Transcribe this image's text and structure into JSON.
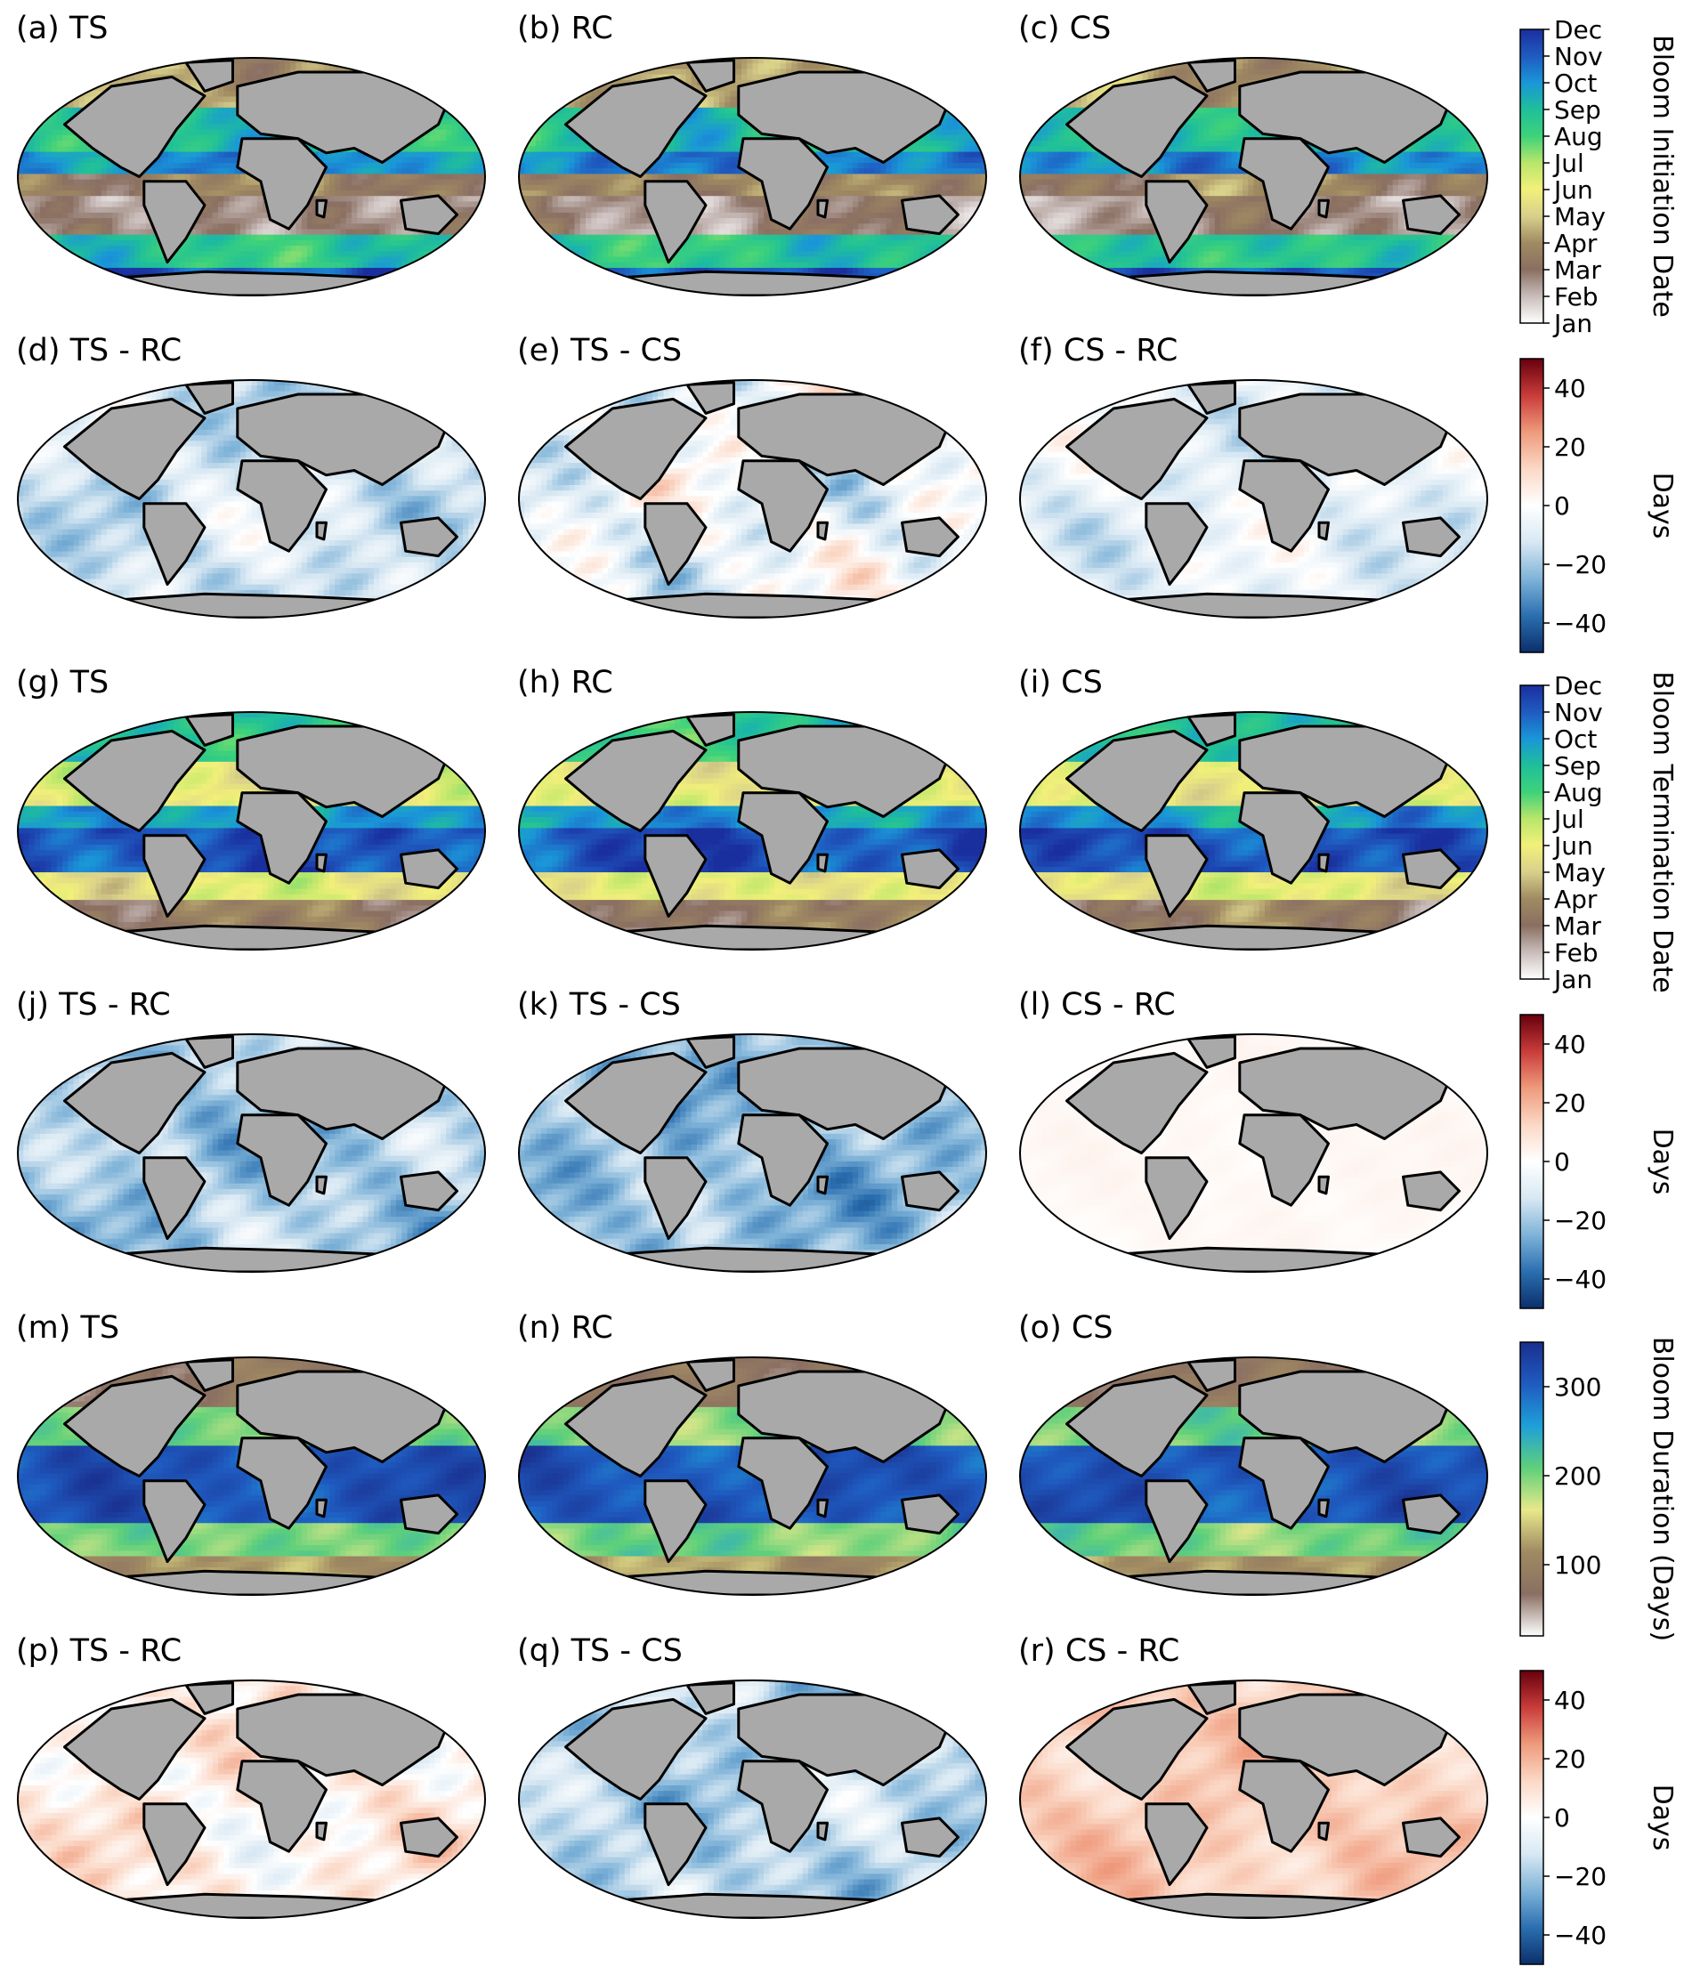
{
  "figure": {
    "rows": [
      {
        "kind": "date",
        "panels": [
          {
            "label": "(a) TS",
            "palette": "date",
            "pattern": "initiation"
          },
          {
            "label": "(b) RC",
            "palette": "date",
            "pattern": "initiation"
          },
          {
            "label": "(c) CS",
            "palette": "date",
            "pattern": "initiation"
          }
        ],
        "colorbar": {
          "label": "Bloom Initiation Date",
          "ticks": [
            "Jan",
            "Feb",
            "Mar",
            "Apr",
            "May",
            "Jun",
            "Jul",
            "Aug",
            "Sep",
            "Oct",
            "Nov",
            "Dec"
          ]
        }
      },
      {
        "kind": "diff",
        "panels": [
          {
            "label": "(d) TS - RC",
            "palette": "diff",
            "bias": -0.25,
            "amp": 0.35
          },
          {
            "label": "(e) TS - CS",
            "palette": "diff",
            "bias": -0.1,
            "amp": 0.45
          },
          {
            "label": "(f) CS - RC",
            "palette": "diff",
            "bias": -0.15,
            "amp": 0.3
          }
        ],
        "colorbar": {
          "label": "Days",
          "ticks": [
            "40",
            "20",
            "0",
            "−20",
            "−40"
          ],
          "range": [
            -50,
            50
          ]
        }
      },
      {
        "kind": "date",
        "panels": [
          {
            "label": "(g) TS",
            "palette": "date",
            "pattern": "termination"
          },
          {
            "label": "(h) RC",
            "palette": "date",
            "pattern": "termination"
          },
          {
            "label": "(i) CS",
            "palette": "date",
            "pattern": "termination"
          }
        ],
        "colorbar": {
          "label": "Bloom Termination Date",
          "ticks": [
            "Jan",
            "Feb",
            "Mar",
            "Apr",
            "May",
            "Jun",
            "Jul",
            "Aug",
            "Sep",
            "Oct",
            "Nov",
            "Dec"
          ]
        }
      },
      {
        "kind": "diff",
        "panels": [
          {
            "label": "(j) TS - RC",
            "palette": "diff",
            "bias": -0.4,
            "amp": 0.35
          },
          {
            "label": "(k) TS - CS",
            "palette": "diff",
            "bias": -0.45,
            "amp": 0.35
          },
          {
            "label": "(l) CS - RC",
            "palette": "diff",
            "bias": 0.04,
            "amp": 0.04
          }
        ],
        "colorbar": {
          "label": "Days",
          "ticks": [
            "40",
            "20",
            "0",
            "−20",
            "−40"
          ],
          "range": [
            -50,
            50
          ]
        }
      },
      {
        "kind": "duration",
        "panels": [
          {
            "label": "(m) TS",
            "palette": "duration",
            "pattern": "duration"
          },
          {
            "label": "(n) RC",
            "palette": "duration",
            "pattern": "duration"
          },
          {
            "label": "(o) CS",
            "palette": "duration",
            "pattern": "duration"
          }
        ],
        "colorbar": {
          "label": "Bloom Duration (Days)",
          "ticks": [
            "300",
            "200",
            "100"
          ],
          "range": [
            20,
            350
          ]
        }
      },
      {
        "kind": "diff",
        "panels": [
          {
            "label": "(p) TS - RC",
            "palette": "diff",
            "bias": 0.1,
            "amp": 0.35
          },
          {
            "label": "(q) TS - CS",
            "palette": "diff",
            "bias": -0.35,
            "amp": 0.35
          },
          {
            "label": "(r) CS - RC",
            "palette": "diff",
            "bias": 0.3,
            "amp": 0.2
          }
        ],
        "colorbar": {
          "label": "Days",
          "ticks": [
            "40",
            "20",
            "0",
            "−20",
            "−40"
          ],
          "range": [
            -50,
            50
          ]
        }
      }
    ],
    "colors": {
      "land": "#a9a9a9",
      "coast": "#000000",
      "date_ramp": [
        "#ffffff",
        "#c9bdbb",
        "#8a6f62",
        "#a08a62",
        "#d8d08a",
        "#f2f07a",
        "#b9e66a",
        "#3fd27a",
        "#1fbf9a",
        "#1a96d8",
        "#1f5bc0",
        "#1a2f9e"
      ],
      "diff_ramp": [
        "#0b2f6b",
        "#2b6fb0",
        "#7fb3d8",
        "#d8e8f3",
        "#ffffff",
        "#fbd8c6",
        "#ef9a7c",
        "#c93c3a",
        "#67000d"
      ],
      "duration_ramp": [
        "#ffffff",
        "#8a6f62",
        "#a08a62",
        "#e8e88a",
        "#5fd07a",
        "#1fa0d8",
        "#1f5bc0",
        "#1a2f8e"
      ]
    }
  }
}
